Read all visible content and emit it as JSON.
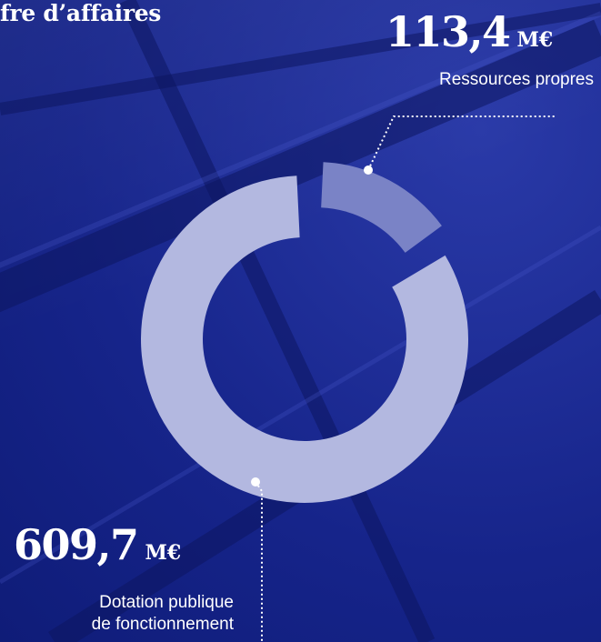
{
  "title_fragment": "fre d’affaires",
  "chart_data": {
    "type": "pie",
    "unit": "M€",
    "slices": [
      {
        "label": "Ressources propres",
        "value": 113.4,
        "display": "113,4",
        "color": "#7a83c6"
      },
      {
        "label_lines": [
          "Dotation publique",
          "de fonctionnement"
        ],
        "value": 609.7,
        "display": "609,7",
        "color": "#b3b8e0"
      }
    ]
  }
}
